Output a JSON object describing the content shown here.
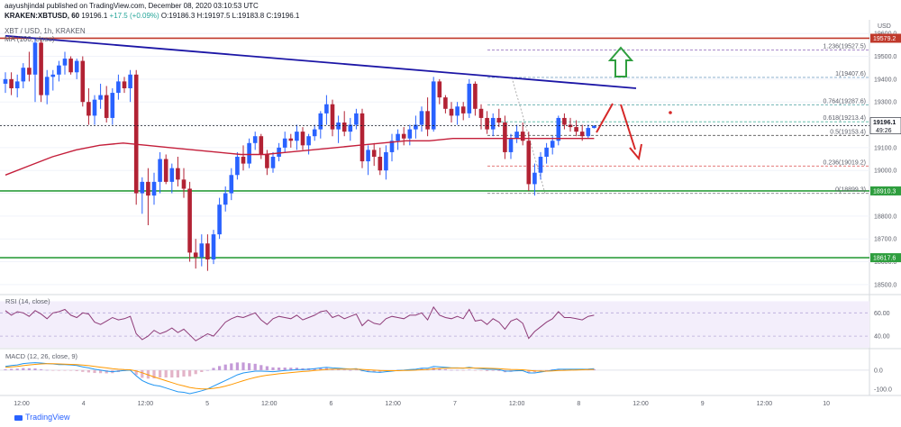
{
  "header": {
    "line1": "aayushjindal published on TradingView.com, December 08, 2020 03:10:53 UTC",
    "symbol": "KRAKEN:XBTUSD, 60",
    "last": "19196.1",
    "change": "+17.5 (+0.09%)",
    "ohlc": "O:19186.3  H:19197.5  L:19183.8  C:19196.1",
    "pair_title": "XBT / USD, 1h, KRAKEN",
    "ma_label": "MA (100, close)",
    "currency": "USD"
  },
  "footer": {
    "brand": "TradingView"
  },
  "colors": {
    "up": "#26a69a",
    "down": "#ef5350",
    "candle_up": "#2962ff",
    "candle_down": "#b22234",
    "ma": "#c41e3a",
    "trendline": "#1c16a6",
    "support": "#2e9e3e",
    "resistance": "#c0392b",
    "arrow_up": "#2e9e3e",
    "arrow_down": "#d62828"
  },
  "chart_data": [
    {
      "type": "candlestick",
      "title": "XBT / USD, 1h, KRAKEN",
      "x_ticks": [
        "12:00",
        "4",
        "12:00",
        "5",
        "12:00",
        "6",
        "12:00",
        "7",
        "12:00",
        "8",
        "12:00",
        "9",
        "12:00",
        "10"
      ],
      "y_ticks": [
        19600.0,
        19500.0,
        19400.0,
        19300.0,
        19200.0,
        19100.0,
        19000.0,
        18900.0,
        18800.0,
        18700.0,
        18600.0,
        18500.0
      ],
      "ylim": [
        18460,
        19660
      ],
      "n_bars": 100,
      "candles": [
        [
          19380,
          19430,
          19340,
          19400
        ],
        [
          19400,
          19430,
          19330,
          19360
        ],
        [
          19360,
          19420,
          19320,
          19390
        ],
        [
          19390,
          19470,
          19360,
          19450
        ],
        [
          19450,
          19520,
          19390,
          19420
        ],
        [
          19420,
          19580,
          19300,
          19560
        ],
        [
          19560,
          19580,
          19300,
          19330
        ],
        [
          19330,
          19440,
          19290,
          19410
        ],
        [
          19410,
          19440,
          19350,
          19420
        ],
        [
          19420,
          19480,
          19390,
          19460
        ],
        [
          19460,
          19520,
          19420,
          19490
        ],
        [
          19490,
          19500,
          19420,
          19430
        ],
        [
          19430,
          19490,
          19400,
          19480
        ],
        [
          19480,
          19500,
          19280,
          19300
        ],
        [
          19300,
          19360,
          19200,
          19240
        ],
        [
          19240,
          19330,
          19200,
          19310
        ],
        [
          19310,
          19380,
          19270,
          19330
        ],
        [
          19330,
          19370,
          19210,
          19230
        ],
        [
          19230,
          19360,
          19200,
          19340
        ],
        [
          19340,
          19420,
          19310,
          19390
        ],
        [
          19390,
          19410,
          19340,
          19360
        ],
        [
          19360,
          19440,
          19300,
          19420
        ],
        [
          19420,
          19440,
          18850,
          18900
        ],
        [
          18900,
          18970,
          18810,
          18950
        ],
        [
          18950,
          19010,
          18760,
          18890
        ],
        [
          18890,
          18990,
          18850,
          18950
        ],
        [
          18950,
          19080,
          18900,
          19050
        ],
        [
          19050,
          19070,
          18940,
          18950
        ],
        [
          18950,
          19030,
          18900,
          19010
        ],
        [
          19010,
          19060,
          18930,
          18960
        ],
        [
          18960,
          19010,
          18880,
          18920
        ],
        [
          18920,
          18950,
          18600,
          18640
        ],
        [
          18640,
          18700,
          18570,
          18620
        ],
        [
          18620,
          18720,
          18580,
          18680
        ],
        [
          18680,
          18720,
          18560,
          18610
        ],
        [
          18610,
          18740,
          18590,
          18720
        ],
        [
          18720,
          18880,
          18700,
          18850
        ],
        [
          18850,
          18930,
          18820,
          18900
        ],
        [
          18900,
          19010,
          18870,
          18980
        ],
        [
          18980,
          19080,
          18960,
          19060
        ],
        [
          19060,
          19110,
          19000,
          19030
        ],
        [
          19030,
          19140,
          19010,
          19120
        ],
        [
          19120,
          19170,
          19090,
          19150
        ],
        [
          19150,
          19160,
          19050,
          19070
        ],
        [
          19070,
          19090,
          18980,
          19010
        ],
        [
          19010,
          19080,
          18990,
          19060
        ],
        [
          19060,
          19120,
          19040,
          19100
        ],
        [
          19100,
          19170,
          19080,
          19140
        ],
        [
          19140,
          19160,
          19100,
          19130
        ],
        [
          19130,
          19200,
          19090,
          19170
        ],
        [
          19170,
          19190,
          19090,
          19110
        ],
        [
          19110,
          19160,
          19070,
          19150
        ],
        [
          19150,
          19200,
          19130,
          19180
        ],
        [
          19180,
          19260,
          19140,
          19250
        ],
        [
          19250,
          19330,
          19200,
          19290
        ],
        [
          19290,
          19310,
          19150,
          19180
        ],
        [
          19180,
          19240,
          19120,
          19210
        ],
        [
          19210,
          19260,
          19150,
          19170
        ],
        [
          19170,
          19230,
          19130,
          19200
        ],
        [
          19200,
          19270,
          19180,
          19250
        ],
        [
          19250,
          19270,
          19010,
          19040
        ],
        [
          19040,
          19110,
          18980,
          19090
        ],
        [
          19090,
          19120,
          19020,
          19060
        ],
        [
          19060,
          19100,
          18980,
          19000
        ],
        [
          19000,
          19110,
          18960,
          19080
        ],
        [
          19080,
          19160,
          19040,
          19130
        ],
        [
          19130,
          19180,
          19090,
          19160
        ],
        [
          19160,
          19190,
          19110,
          19140
        ],
        [
          19140,
          19200,
          19110,
          19180
        ],
        [
          19180,
          19240,
          19140,
          19200
        ],
        [
          19200,
          19280,
          19170,
          19260
        ],
        [
          19260,
          19320,
          19150,
          19180
        ],
        [
          19180,
          19410,
          19170,
          19390
        ],
        [
          19390,
          19400,
          19290,
          19320
        ],
        [
          19320,
          19330,
          19250,
          19270
        ],
        [
          19270,
          19300,
          19210,
          19240
        ],
        [
          19240,
          19300,
          19200,
          19280
        ],
        [
          19280,
          19300,
          19220,
          19250
        ],
        [
          19250,
          19400,
          19230,
          19380
        ],
        [
          19380,
          19390,
          19240,
          19270
        ],
        [
          19270,
          19290,
          19180,
          19230
        ],
        [
          19230,
          19260,
          19160,
          19180
        ],
        [
          19180,
          19250,
          19150,
          19230
        ],
        [
          19230,
          19270,
          19190,
          19210
        ],
        [
          19210,
          19240,
          19050,
          19080
        ],
        [
          19080,
          19160,
          19050,
          19140
        ],
        [
          19140,
          19200,
          19120,
          19170
        ],
        [
          19170,
          19210,
          19110,
          19130
        ],
        [
          19130,
          19170,
          18910,
          18940
        ],
        [
          18940,
          19030,
          18890,
          18990
        ],
        [
          18990,
          19080,
          18960,
          19060
        ],
        [
          19060,
          19120,
          19030,
          19100
        ],
        [
          19100,
          19150,
          19070,
          19130
        ],
        [
          19130,
          19240,
          19110,
          19230
        ],
        [
          19230,
          19250,
          19180,
          19200
        ],
        [
          19200,
          19230,
          19170,
          19190
        ],
        [
          19190,
          19220,
          19150,
          19170
        ],
        [
          19170,
          19200,
          19130,
          19150
        ],
        [
          19150,
          19200,
          19140,
          19186
        ],
        [
          19186,
          19198,
          19184,
          19196
        ]
      ],
      "ma_100": [
        18980,
        19020,
        19060,
        19090,
        19110,
        19120,
        19110,
        19100,
        19090,
        19080,
        19070,
        19070,
        19080,
        19090,
        19100,
        19110,
        19120,
        19130,
        19130,
        19140,
        19140,
        19140,
        19140,
        19140,
        19140,
        19140
      ],
      "trendline": {
        "from": [
          0,
          19590
        ],
        "to": [
          99,
          19360
        ]
      },
      "levels": [
        {
          "price": 19579.2,
          "label": "19579.2",
          "kind": "resistance"
        },
        {
          "price": 18910.3,
          "label": "18910.3",
          "kind": "support"
        },
        {
          "price": 18617.6,
          "label": "18617.6",
          "kind": "support"
        }
      ],
      "fibonacci": [
        {
          "ratio": "1.236",
          "price": 19527.5
        },
        {
          "ratio": "1",
          "price": 19407.6
        },
        {
          "ratio": "0.764",
          "price": 19287.6
        },
        {
          "ratio": "0.618",
          "price": 19213.4
        },
        {
          "ratio": "0.5",
          "price": 19153.4
        },
        {
          "ratio": "0.236",
          "price": 19019.2
        },
        {
          "ratio": "0",
          "price": 18899.3
        }
      ],
      "last_price": {
        "value": "19196.1",
        "timer": "49:26"
      }
    },
    {
      "type": "line",
      "title": "RSI (14, close)",
      "y_ticks": [
        60.0,
        40.0
      ],
      "ylim": [
        30,
        75
      ],
      "values": [
        62,
        58,
        61,
        60,
        57,
        62,
        59,
        55,
        60,
        61,
        63,
        58,
        56,
        60,
        59,
        52,
        50,
        53,
        56,
        54,
        55,
        57,
        42,
        37,
        40,
        45,
        42,
        44,
        47,
        43,
        46,
        41,
        36,
        39,
        42,
        40,
        46,
        52,
        55,
        57,
        56,
        58,
        60,
        54,
        50,
        55,
        57,
        56,
        55,
        58,
        54,
        56,
        58,
        61,
        62,
        56,
        58,
        55,
        57,
        59,
        49,
        54,
        51,
        50,
        55,
        57,
        56,
        55,
        58,
        58,
        60,
        54,
        65,
        58,
        56,
        55,
        57,
        55,
        63,
        53,
        54,
        50,
        55,
        52,
        46,
        53,
        55,
        51,
        38,
        44,
        48,
        52,
        55,
        61,
        56,
        56,
        55,
        54,
        57,
        58
      ]
    },
    {
      "type": "line",
      "title": "MACD (12, 26, close, 9)",
      "y_ticks": [
        0.0,
        -100.0
      ],
      "ylim": [
        -130,
        110
      ],
      "macd": [
        20,
        25,
        28,
        35,
        38,
        40,
        38,
        35,
        33,
        30,
        30,
        28,
        25,
        18,
        12,
        5,
        0,
        -5,
        -8,
        -5,
        -2,
        0,
        -30,
        -55,
        -70,
        -80,
        -85,
        -95,
        -105,
        -115,
        -118,
        -125,
        -118,
        -110,
        -100,
        -85,
        -70,
        -55,
        -40,
        -25,
        -15,
        -10,
        -5,
        -5,
        -6,
        -8,
        -5,
        -2,
        0,
        3,
        3,
        5,
        8,
        12,
        15,
        12,
        10,
        8,
        6,
        8,
        -2,
        -8,
        -10,
        -12,
        -8,
        -5,
        -2,
        0,
        3,
        5,
        10,
        10,
        20,
        18,
        15,
        12,
        12,
        10,
        15,
        10,
        8,
        5,
        5,
        3,
        -5,
        -5,
        -3,
        -3,
        -15,
        -15,
        -10,
        -5,
        0,
        5,
        5,
        5,
        5,
        5,
        6,
        8
      ],
      "signal": [
        15,
        18,
        20,
        24,
        28,
        31,
        33,
        34,
        34,
        33,
        32,
        31,
        30,
        27,
        24,
        20,
        16,
        12,
        8,
        5,
        3,
        2,
        -4,
        -14,
        -25,
        -36,
        -46,
        -56,
        -66,
        -76,
        -84,
        -92,
        -97,
        -100,
        -100,
        -97,
        -92,
        -85,
        -76,
        -66,
        -56,
        -47,
        -39,
        -32,
        -27,
        -23,
        -19,
        -16,
        -13,
        -10,
        -7,
        -5,
        -2,
        1,
        4,
        5,
        6,
        6,
        6,
        6,
        4,
        2,
        0,
        -2,
        -3,
        -3,
        -3,
        -2,
        -1,
        0,
        2,
        4,
        7,
        9,
        10,
        11,
        11,
        11,
        12,
        11,
        11,
        10,
        9,
        8,
        6,
        4,
        3,
        2,
        -1,
        -4,
        -5,
        -5,
        -4,
        -2,
        -1,
        0,
        1,
        2,
        3,
        4
      ],
      "histogram": [
        5,
        7,
        8,
        11,
        10,
        9,
        5,
        1,
        -1,
        -3,
        -2,
        -3,
        -5,
        -9,
        -12,
        -15,
        -16,
        -17,
        -16,
        -10,
        -5,
        -2,
        -26,
        -41,
        -45,
        -44,
        -39,
        -39,
        -39,
        -39,
        -34,
        -33,
        -21,
        -10,
        0,
        12,
        22,
        30,
        36,
        41,
        41,
        37,
        34,
        27,
        21,
        15,
        14,
        14,
        13,
        13,
        10,
        10,
        10,
        11,
        11,
        7,
        4,
        2,
        0,
        2,
        -6,
        -10,
        -10,
        -10,
        -5,
        -2,
        1,
        2,
        4,
        5,
        8,
        6,
        13,
        9,
        5,
        1,
        1,
        -1,
        3,
        -1,
        -3,
        -5,
        -4,
        -5,
        -11,
        -9,
        -6,
        -5,
        -14,
        -11,
        -5,
        0,
        4,
        7,
        6,
        6,
        5,
        4,
        4,
        5
      ]
    }
  ]
}
